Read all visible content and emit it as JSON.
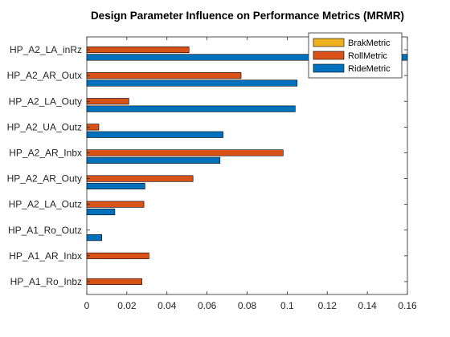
{
  "chart_data": {
    "type": "bar",
    "orientation": "horizontal",
    "title": "Design Parameter Influence on Performance Metrics (MRMR)",
    "xlabel": "",
    "ylabel": "",
    "xlim": [
      0,
      0.16
    ],
    "xticks": [
      0,
      0.02,
      0.04,
      0.06,
      0.08,
      0.1,
      0.12,
      0.14,
      0.16
    ],
    "xtick_labels": [
      "0",
      "0.02",
      "0.04",
      "0.06",
      "0.08",
      "0.1",
      "0.12",
      "0.14",
      "0.16"
    ],
    "categories": [
      "HP_A2_LA_inRz",
      "HP_A2_AR_Outx",
      "HP_A2_LA_Outy",
      "HP_A2_UA_Outz",
      "HP_A2_AR_Inbx",
      "HP_A2_AR_Outy",
      "HP_A2_LA_Outz",
      "HP_A1_Ro_Outz",
      "HP_A1_AR_Inbx",
      "HP_A1_Ro_Inbz"
    ],
    "series": [
      {
        "name": "BrakMetric",
        "color": "#EDB120",
        "values": [
          0,
          0,
          0,
          0,
          0,
          0,
          0,
          0,
          0,
          0
        ]
      },
      {
        "name": "RollMetric",
        "color": "#D95319",
        "values": [
          0.051,
          0.077,
          0.021,
          0.006,
          0.098,
          0.053,
          0.0285,
          0,
          0.031,
          0.0275
        ]
      },
      {
        "name": "RideMetric",
        "color": "#0072BD",
        "values": [
          0.16,
          0.105,
          0.104,
          0.068,
          0.0665,
          0.029,
          0.014,
          0.0075,
          0,
          0
        ]
      }
    ],
    "legend_position": "top-right",
    "grid": false
  }
}
